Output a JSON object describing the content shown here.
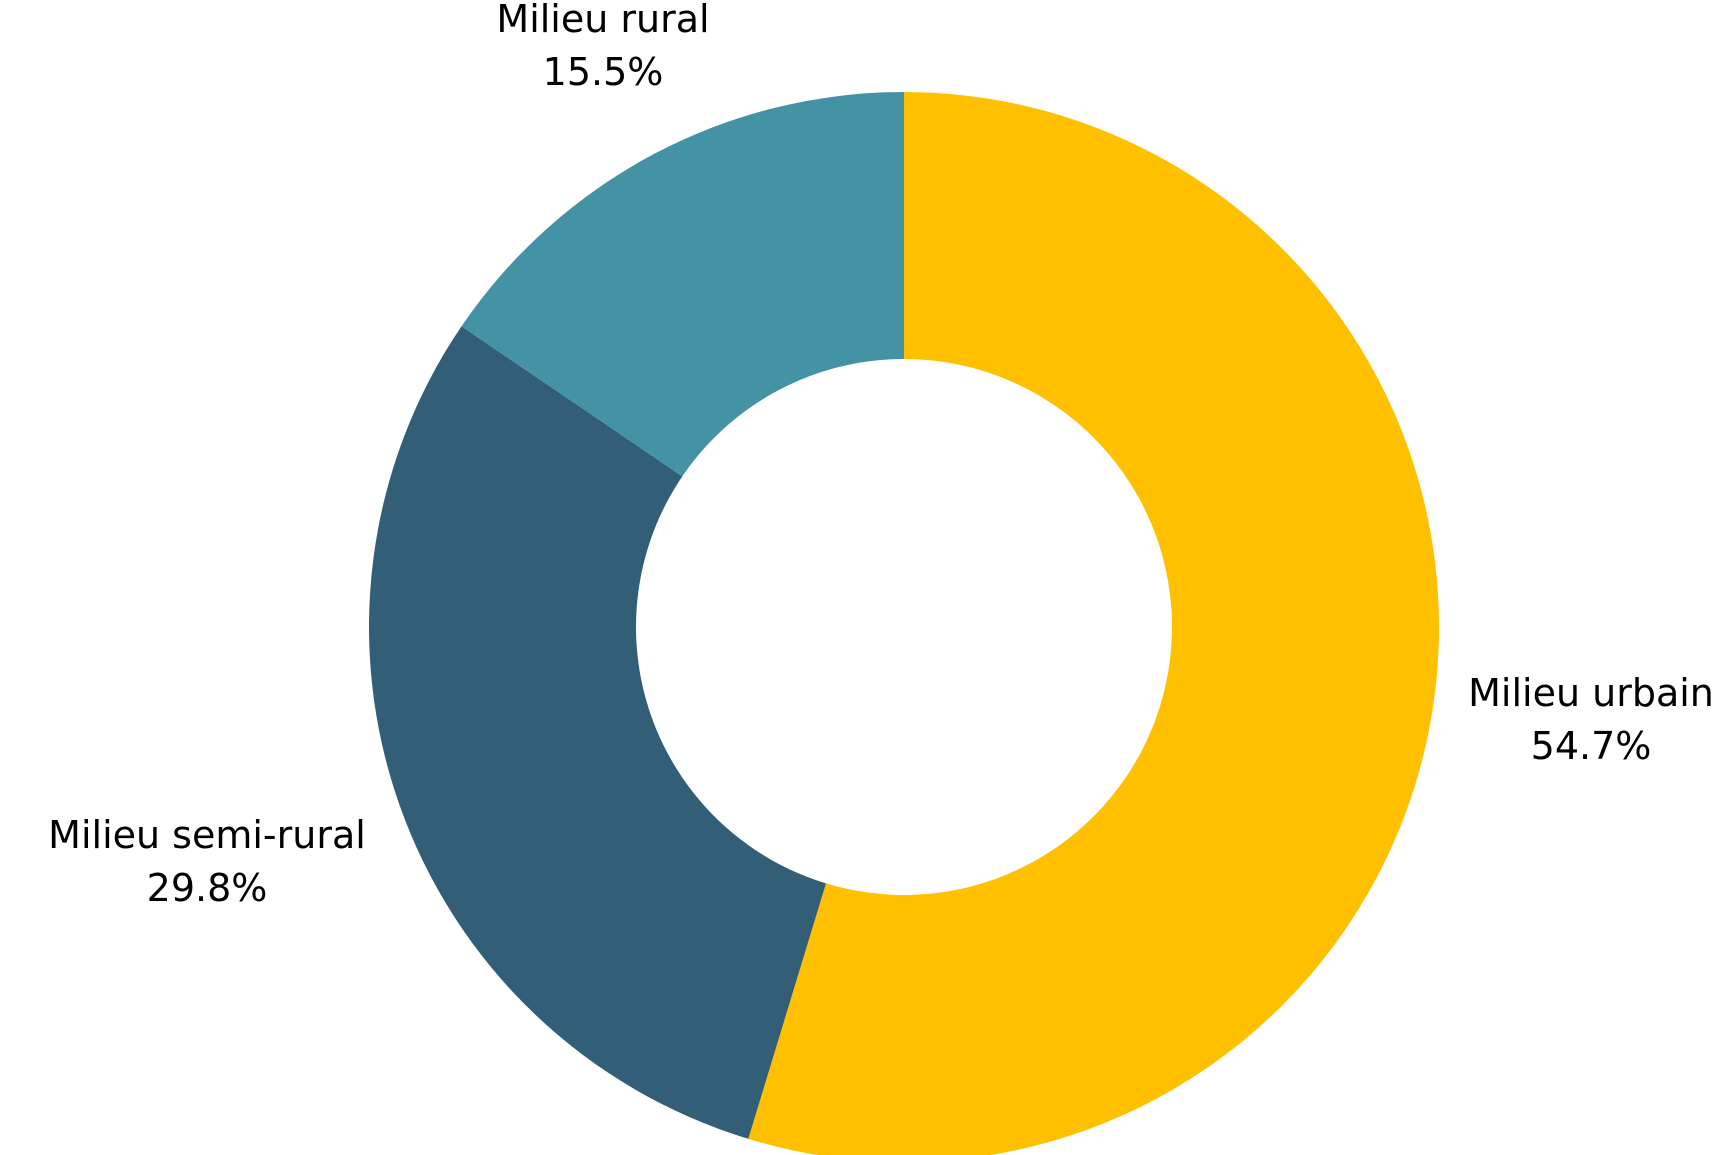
{
  "chart_data": {
    "type": "pie",
    "donut": true,
    "title": "",
    "slices": [
      {
        "label": "Milieu urbain",
        "value": 54.7,
        "value_label": "54.7%",
        "color": "#FFC000"
      },
      {
        "label": "Milieu semi-rural",
        "value": 29.8,
        "value_label": "29.8%",
        "color": "#335E78"
      },
      {
        "label": "Milieu rural",
        "value": 15.5,
        "value_label": "15.5%",
        "color": "#4493A5"
      }
    ],
    "start": "top",
    "direction": "clockwise",
    "legend": "none"
  }
}
